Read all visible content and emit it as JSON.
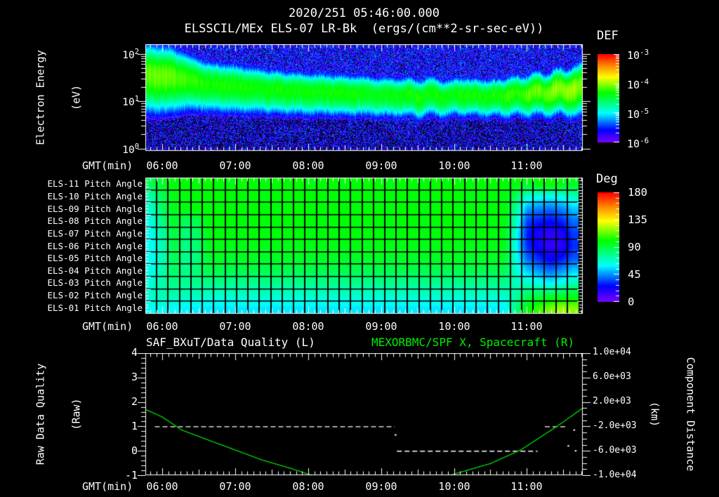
{
  "header": {
    "title": "2020/251 05:46:00.000",
    "subtitle": "ELSSCIL/MEx ELS-07 LR-Bk  (ergs/(cm**2-sr-sec-eV))"
  },
  "colors": {
    "background": "#000000",
    "text": "#ffffff",
    "frame": "#ffffff",
    "title_right_green": "#00ee00",
    "curve_green": "#00cc00",
    "rainbow_stops": [
      [
        0,
        119,
        0,
        255
      ],
      [
        0.14,
        0,
        0,
        255
      ],
      [
        0.33,
        0,
        255,
        255
      ],
      [
        0.48,
        0,
        255,
        85
      ],
      [
        0.56,
        0,
        255,
        0
      ],
      [
        0.74,
        255,
        255,
        0
      ],
      [
        0.87,
        255,
        136,
        0
      ],
      [
        1,
        255,
        0,
        0
      ]
    ]
  },
  "time_axis": {
    "label": "GMT(min)",
    "start": "05:46:00",
    "span_hours": 6,
    "hour_labels": [
      "06:00",
      "07:00",
      "08:00",
      "09:00",
      "10:00",
      "11:00"
    ]
  },
  "spectrogram_panel": {
    "axis_label_line1": "Electron Energy",
    "axis_label_line2": "(eV)",
    "y_tick_labels": [
      {
        "base": "10",
        "exp": "2"
      },
      {
        "base": "10",
        "exp": "1"
      },
      {
        "base": "10",
        "exp": "0"
      }
    ],
    "colorbar": {
      "title": "DEF",
      "tick_labels": [
        {
          "base": "10",
          "exp": "-3"
        },
        {
          "base": "10",
          "exp": "-4"
        },
        {
          "base": "10",
          "exp": "-5"
        },
        {
          "base": "10",
          "exp": "-6"
        }
      ]
    },
    "chart_data": {
      "type": "spectrogram",
      "x_start": "05:46",
      "x_end": "11:46",
      "x_hours": 6,
      "y_unit": "eV",
      "y_log_range": [
        -0.05,
        2.2
      ],
      "color_scale_log10": [
        -6,
        -3
      ],
      "seed": 7,
      "band_points": [
        [
          0.0,
          36,
          0.36,
          -4.1
        ],
        [
          0.35,
          34,
          0.34,
          -4.1
        ],
        [
          0.55,
          30,
          0.3,
          -4.2
        ],
        [
          0.8,
          24,
          0.27,
          -4.25
        ],
        [
          1.2,
          21,
          0.26,
          -4.3
        ],
        [
          1.7,
          18,
          0.24,
          -4.3
        ],
        [
          2.2,
          16,
          0.23,
          -4.3
        ],
        [
          2.7,
          15,
          0.22,
          -4.3
        ],
        [
          3.2,
          14,
          0.22,
          -4.35
        ],
        [
          3.7,
          13,
          0.21,
          -4.3
        ],
        [
          4.0,
          14,
          0.21,
          -4.3
        ],
        [
          4.2,
          12,
          0.2,
          -4.35
        ],
        [
          4.35,
          15,
          0.21,
          -4.25
        ],
        [
          4.5,
          12,
          0.2,
          -4.3
        ],
        [
          4.65,
          14,
          0.21,
          -4.3
        ],
        [
          4.8,
          12,
          0.2,
          -4.3
        ],
        [
          5.0,
          15,
          0.22,
          -4.2
        ],
        [
          5.15,
          13,
          0.21,
          -4.25
        ],
        [
          5.3,
          17,
          0.23,
          -4.1
        ],
        [
          5.45,
          14,
          0.22,
          -4.15
        ],
        [
          5.6,
          19,
          0.24,
          -4.0
        ],
        [
          5.75,
          16,
          0.23,
          -4.05
        ],
        [
          5.88,
          21,
          0.26,
          -4.0
        ],
        [
          6.0,
          20,
          0.28,
          -4.15
        ]
      ]
    }
  },
  "pitch_panel": {
    "row_labels": [
      "ELS-11 Pitch Angle",
      "ELS-10 Pitch Angle",
      "ELS-09 Pitch Angle",
      "ELS-08 Pitch Angle",
      "ELS-07 Pitch Angle",
      "ELS-06 Pitch Angle",
      "ELS-05 Pitch Angle",
      "ELS-04 Pitch Angle",
      "ELS-03 Pitch Angle",
      "ELS-02 Pitch Angle",
      "ELS-01 Pitch Angle"
    ],
    "colorbar": {
      "title": "Deg",
      "tick_labels": [
        "180",
        "135",
        "90",
        "45",
        "0"
      ]
    },
    "chart_data": {
      "type": "heatmap",
      "x_start": "05:46",
      "x_end": "11:42",
      "unit": "degrees",
      "value_range": [
        0,
        180
      ],
      "values": [
        [
          88,
          95,
          100,
          101,
          99,
          102,
          100,
          98,
          103,
          100,
          99,
          101,
          100,
          102,
          98,
          100,
          101,
          99,
          100,
          102,
          100,
          98,
          101,
          100,
          99,
          102,
          100,
          101,
          99,
          100,
          101,
          100,
          100,
          96,
          100,
          103,
          99,
          96
        ],
        [
          72,
          88,
          98,
          100,
          99,
          100,
          101,
          99,
          100,
          100,
          98,
          101,
          100,
          99,
          101,
          100,
          100,
          99,
          101,
          100,
          99,
          100,
          101,
          99,
          100,
          100,
          101,
          100,
          99,
          100,
          100,
          99,
          85,
          66,
          62,
          60,
          63,
          70
        ],
        [
          68,
          85,
          97,
          99,
          100,
          99,
          100,
          100,
          99,
          101,
          100,
          99,
          100,
          101,
          99,
          100,
          100,
          101,
          99,
          100,
          100,
          99,
          101,
          100,
          99,
          100,
          100,
          99,
          100,
          101,
          99,
          100,
          75,
          46,
          42,
          40,
          43,
          52
        ],
        [
          64,
          80,
          95,
          85,
          88,
          99,
          100,
          99,
          100,
          100,
          99,
          100,
          101,
          99,
          100,
          99,
          100,
          100,
          99,
          101,
          100,
          99,
          100,
          100,
          99,
          100,
          101,
          99,
          100,
          100,
          99,
          100,
          68,
          33,
          28,
          26,
          29,
          40
        ],
        [
          62,
          75,
          92,
          80,
          84,
          98,
          99,
          100,
          99,
          100,
          99,
          100,
          99,
          100,
          99,
          100,
          99,
          100,
          100,
          99,
          100,
          99,
          100,
          99,
          100,
          99,
          100,
          100,
          99,
          100,
          99,
          98,
          62,
          28,
          20,
          15,
          19,
          33
        ],
        [
          60,
          72,
          90,
          78,
          82,
          96,
          98,
          97,
          98,
          98,
          97,
          98,
          98,
          97,
          98,
          98,
          97,
          98,
          98,
          97,
          98,
          98,
          97,
          98,
          97,
          98,
          98,
          97,
          98,
          97,
          98,
          97,
          60,
          30,
          21,
          14,
          17,
          31
        ],
        [
          60,
          72,
          88,
          76,
          80,
          93,
          95,
          94,
          95,
          95,
          94,
          95,
          95,
          94,
          95,
          94,
          95,
          95,
          94,
          95,
          95,
          94,
          95,
          94,
          95,
          95,
          94,
          95,
          94,
          95,
          94,
          95,
          62,
          38,
          30,
          23,
          27,
          37
        ],
        [
          62,
          74,
          85,
          78,
          82,
          88,
          88,
          87,
          88,
          88,
          87,
          88,
          88,
          87,
          88,
          88,
          87,
          88,
          87,
          88,
          88,
          87,
          88,
          88,
          87,
          88,
          87,
          88,
          88,
          87,
          88,
          87,
          66,
          52,
          45,
          40,
          45,
          53
        ],
        [
          66,
          74,
          80,
          76,
          78,
          78,
          78,
          77,
          78,
          77,
          78,
          78,
          77,
          78,
          77,
          78,
          78,
          77,
          78,
          77,
          78,
          78,
          77,
          78,
          78,
          77,
          78,
          77,
          78,
          77,
          78,
          78,
          70,
          68,
          63,
          58,
          63,
          72
        ],
        [
          68,
          72,
          72,
          70,
          69,
          68,
          67,
          68,
          67,
          68,
          68,
          67,
          68,
          67,
          68,
          67,
          68,
          68,
          67,
          68,
          67,
          68,
          67,
          68,
          68,
          67,
          68,
          67,
          68,
          67,
          68,
          68,
          75,
          86,
          89,
          91,
          93,
          96
        ],
        [
          60,
          62,
          60,
          58,
          57,
          57,
          56,
          57,
          56,
          57,
          57,
          56,
          57,
          56,
          57,
          56,
          57,
          57,
          56,
          57,
          56,
          57,
          56,
          57,
          57,
          56,
          57,
          56,
          57,
          56,
          57,
          58,
          80,
          100,
          108,
          116,
          121,
          117
        ]
      ]
    }
  },
  "line_panel": {
    "title_left": "SAF_BXuT/Data Quality (L)",
    "title_right": "MEXORBMC/SPF X, Spacecraft (R)",
    "left_axis": {
      "label_line1": "Raw Data Quality",
      "label_line2": "(Raw)",
      "tick_labels": [
        "4",
        "3",
        "2",
        "1",
        "0",
        "-1"
      ],
      "range": [
        4,
        -1
      ]
    },
    "right_axis": {
      "label_line1": "Component Distance",
      "label_line2": "(km)",
      "tick_labels": [
        "1.0e+04",
        "6.0e+03",
        "2.0e+03",
        "-2.0e+03",
        "-6.0e+03",
        "-1.0e+04"
      ],
      "range": [
        10000,
        -10000
      ]
    },
    "chart_data": {
      "type": "line",
      "x_hours": 6,
      "x_start": "05:46",
      "series": [
        {
          "name": "SAF_BXuT/Data Quality",
          "axis": "left",
          "color": "#ffffff",
          "style": "dashed",
          "segments": [
            [
              0.13,
              3.42,
              1
            ],
            [
              3.45,
              5.38,
              0
            ],
            [
              5.48,
              5.78,
              1
            ]
          ],
          "points": [
            [
              3.43,
              0.65
            ],
            [
              5.8,
              0.2
            ],
            [
              5.88,
              0.85
            ],
            [
              5.9,
              0
            ]
          ]
        },
        {
          "name": "MEXORBMC/SPF X Spacecraft",
          "axis": "right",
          "color": "#00cc00",
          "style": "solid",
          "points": [
            [
              0,
              780
            ],
            [
              0.23,
              -450
            ],
            [
              0.5,
              -2600
            ],
            [
              0.9,
              -4400
            ],
            [
              1.23,
              -5850
            ],
            [
              1.6,
              -7500
            ],
            [
              2.0,
              -8900
            ],
            [
              2.28,
              -10000
            ],
            [
              3.23,
              -13500
            ],
            [
              4.18,
              -10000
            ],
            [
              4.73,
              -8100
            ],
            [
              5.15,
              -5850
            ],
            [
              5.67,
              -1800
            ],
            [
              6.0,
              1010
            ]
          ]
        }
      ],
      "left_range": [
        4,
        -1
      ],
      "right_range": [
        10000,
        -10000
      ]
    }
  }
}
